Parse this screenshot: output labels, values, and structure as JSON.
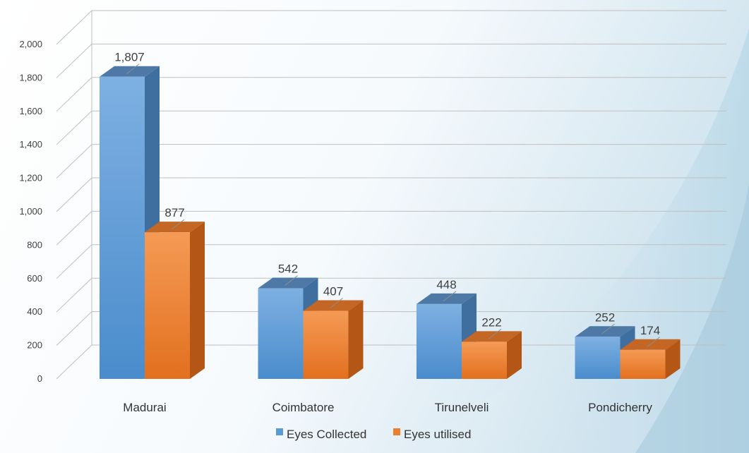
{
  "chart_data": {
    "type": "bar",
    "categories": [
      "Madurai",
      "Coimbatore",
      "Tirunelveli",
      "Pondicherry"
    ],
    "series": [
      {
        "name": "Eyes Collected",
        "values": [
          1807,
          542,
          448,
          252
        ],
        "value_labels": [
          "1,807",
          "542",
          "448",
          "252"
        ]
      },
      {
        "name": "Eyes utilised",
        "values": [
          877,
          407,
          222,
          174
        ],
        "value_labels": [
          "877",
          "407",
          "222",
          "174"
        ]
      }
    ],
    "ylim": [
      0,
      2000
    ],
    "yticks": [
      "0",
      "200",
      "400",
      "600",
      "800",
      "1,000",
      "1,200",
      "1,400",
      "1,600",
      "1,800",
      "2,000"
    ],
    "grid": true,
    "legend_position": "bottom",
    "three_d": true
  },
  "colors": {
    "series_front": [
      "#5b9bd5",
      "#ed7d31"
    ],
    "series_front_light": [
      "#7eb0e2",
      "#f59a55"
    ],
    "series_side": [
      "#3f6f9f",
      "#b45716"
    ],
    "series_top": [
      "#4e79a6",
      "#c46624"
    ],
    "grid": "#bfbfbf"
  }
}
